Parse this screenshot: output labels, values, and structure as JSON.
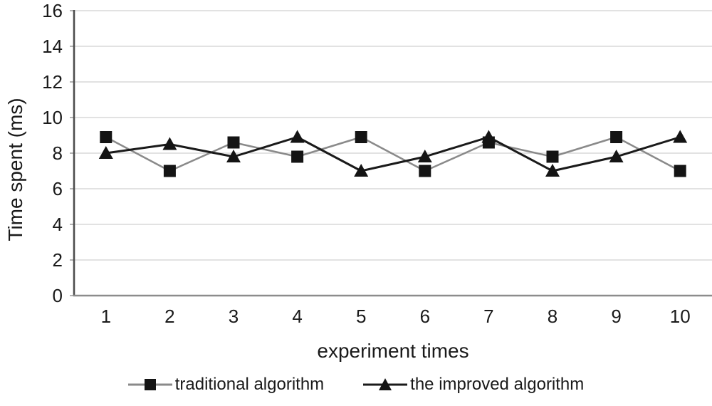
{
  "colors": {
    "background": "#ffffff",
    "grid": "#d9d9d9",
    "axis_left": "#4d4d4d",
    "axis_bottom": "#8c8c8c",
    "tick": "#9a9a9a",
    "text": "#1a1a1a"
  },
  "chart_data": {
    "type": "line",
    "title": "",
    "xlabel": "experiment times",
    "ylabel": "Time spent (ms)",
    "x": [
      "1",
      "2",
      "3",
      "4",
      "5",
      "6",
      "7",
      "8",
      "9",
      "10"
    ],
    "ylim": [
      0,
      16
    ],
    "yticks": [
      0,
      2,
      4,
      6,
      8,
      10,
      12,
      14,
      16
    ],
    "grid": true,
    "legend_position": "bottom",
    "series": [
      {
        "name": "traditional algorithm",
        "marker": "square",
        "line_color": "#8a8a8a",
        "line_width": 2.5,
        "marker_color": "#141414",
        "values": [
          8.9,
          7.0,
          8.6,
          7.8,
          8.9,
          7.0,
          8.6,
          7.8,
          8.9,
          7.0
        ]
      },
      {
        "name": "the improved algorithm",
        "marker": "triangle",
        "line_color": "#1a1a1a",
        "line_width": 3,
        "marker_color": "#141414",
        "values": [
          8.0,
          8.5,
          7.8,
          8.9,
          7.0,
          7.8,
          8.9,
          7.0,
          7.8,
          8.9
        ]
      }
    ]
  }
}
